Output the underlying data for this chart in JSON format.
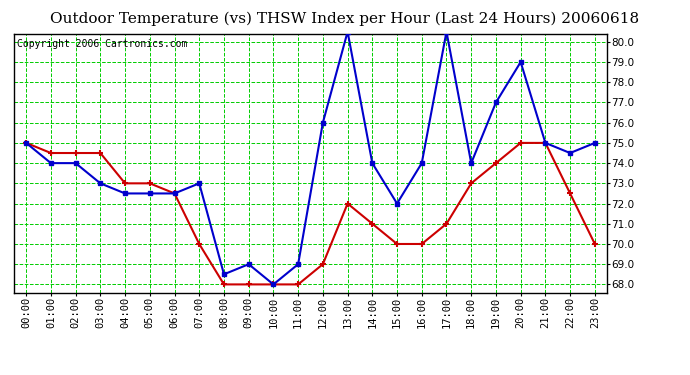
{
  "title": "Outdoor Temperature (vs) THSW Index per Hour (Last 24 Hours) 20060618",
  "copyright": "Copyright 2006 Cartronics.com",
  "hours": [
    "00:00",
    "01:00",
    "02:00",
    "03:00",
    "04:00",
    "05:00",
    "06:00",
    "07:00",
    "08:00",
    "09:00",
    "10:00",
    "11:00",
    "12:00",
    "13:00",
    "14:00",
    "15:00",
    "16:00",
    "17:00",
    "18:00",
    "19:00",
    "20:00",
    "21:00",
    "22:00",
    "23:00"
  ],
  "outdoor_temp": [
    75.0,
    74.5,
    74.5,
    74.5,
    73.0,
    73.0,
    72.5,
    70.0,
    68.0,
    68.0,
    68.0,
    68.0,
    69.0,
    72.0,
    71.0,
    70.0,
    70.0,
    71.0,
    73.0,
    74.0,
    75.0,
    75.0,
    72.5,
    70.0
  ],
  "thsw_index": [
    75.0,
    74.0,
    74.0,
    73.0,
    72.5,
    72.5,
    72.5,
    73.0,
    68.5,
    69.0,
    68.0,
    69.0,
    76.0,
    80.5,
    74.0,
    72.0,
    74.0,
    80.5,
    74.0,
    77.0,
    79.0,
    75.0,
    74.5,
    75.0
  ],
  "temp_color": "#cc0000",
  "thsw_color": "#0000cc",
  "bg_color": "#ffffff",
  "plot_bg_color": "#ffffff",
  "grid_color": "#00cc00",
  "ylim": [
    67.6,
    80.4
  ],
  "yticks": [
    68.0,
    69.0,
    70.0,
    71.0,
    72.0,
    73.0,
    74.0,
    75.0,
    76.0,
    77.0,
    78.0,
    79.0,
    80.0
  ],
  "title_fontsize": 11,
  "copyright_fontsize": 7,
  "tick_fontsize": 7.5
}
